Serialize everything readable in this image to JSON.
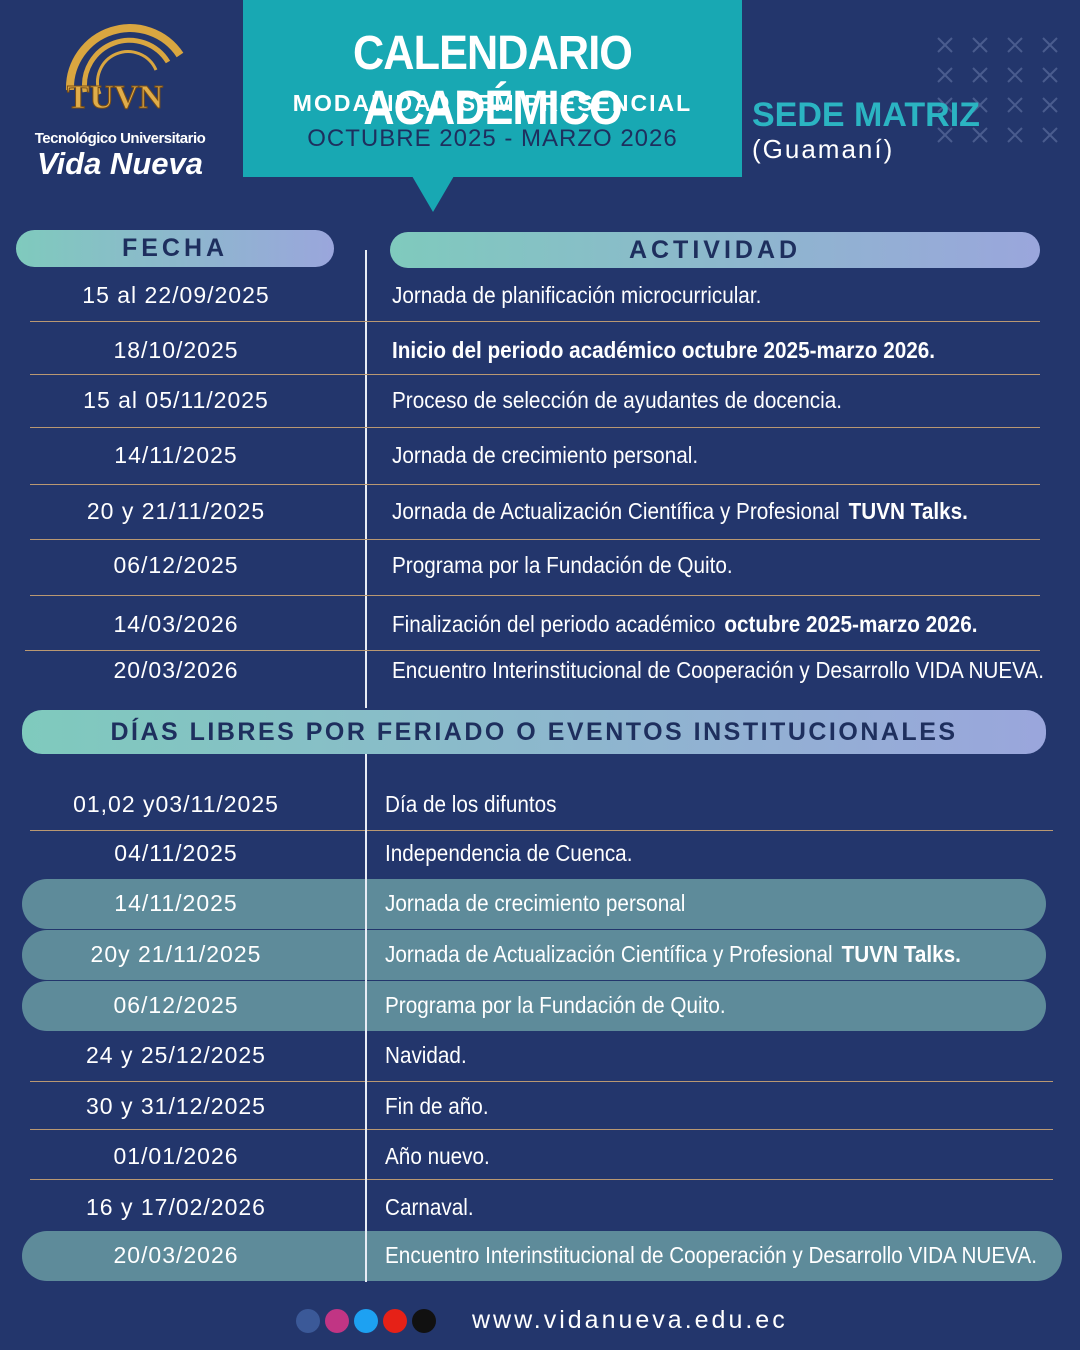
{
  "logo": {
    "mark": "TUVN",
    "line1": "Tecnológico Universitario",
    "line2": "Vida Nueva"
  },
  "header": {
    "title": "CALENDARIO ACADÉMICO",
    "subtitle": "MODALIDAD SEMIPRESENCIAL",
    "period": "OCTUBRE 2025 - MARZO 2026"
  },
  "campus": {
    "name": "SEDE MATRIZ",
    "location": "(Guamaní)"
  },
  "schedule": {
    "headers": [
      "FECHA",
      "ACTIVIDAD"
    ],
    "rows": [
      {
        "date": "15 al 22/09/2025",
        "text": "Jornada de planificación microcurricular."
      },
      {
        "date": "18/10/2025",
        "strong": "Inicio del periodo académico octubre 2025-marzo 2026."
      },
      {
        "date": "15 al 05/11/2025",
        "text": "Proceso de selección de ayudantes de docencia."
      },
      {
        "date": "14/11/2025",
        "text": "Jornada de crecimiento personal."
      },
      {
        "date": "20 y 21/11/2025",
        "text": "Jornada de Actualización Científica y Profesional",
        "strong": "TUVN Talks."
      },
      {
        "date": "06/12/2025",
        "text": "Programa por la Fundación de Quito."
      },
      {
        "date": "14/03/2026",
        "text": "Finalización del periodo académico",
        "strong": "octubre 2025-marzo 2026."
      },
      {
        "date": "20/03/2026",
        "text": "Encuentro Interinstitucional de Cooperación y Desarrollo VIDA NUEVA."
      }
    ]
  },
  "holidays": {
    "title": "DÍAS LIBRES POR FERIADO O EVENTOS INSTITUCIONALES",
    "rows": [
      {
        "date": "01,02 y03/11/2025",
        "text": "Día de los difuntos"
      },
      {
        "date": "04/11/2025",
        "text": "Independencia de Cuenca."
      },
      {
        "date": "14/11/2025",
        "text": "Jornada de crecimiento personal",
        "highlighted": true
      },
      {
        "date": "20y 21/11/2025",
        "text": "Jornada de Actualización Científica y Profesional",
        "strong": "TUVN Talks.",
        "highlighted": true
      },
      {
        "date": "06/12/2025",
        "text": "Programa por la Fundación de Quito.",
        "highlighted": true
      },
      {
        "date": "24 y 25/12/2025",
        "text": "Navidad."
      },
      {
        "date": "30 y 31/12/2025",
        "text": "Fin de año."
      },
      {
        "date": "01/01/2026",
        "text": "Año nuevo."
      },
      {
        "date": "16 y 17/02/2026",
        "text": "Carnaval."
      },
      {
        "date": "20/03/2026",
        "text": "Encuentro Interinstitucional de Cooperación y Desarrollo VIDA NUEVA.",
        "highlighted": true
      }
    ]
  },
  "footer": {
    "website": "www.vidanueva.edu.ec"
  }
}
